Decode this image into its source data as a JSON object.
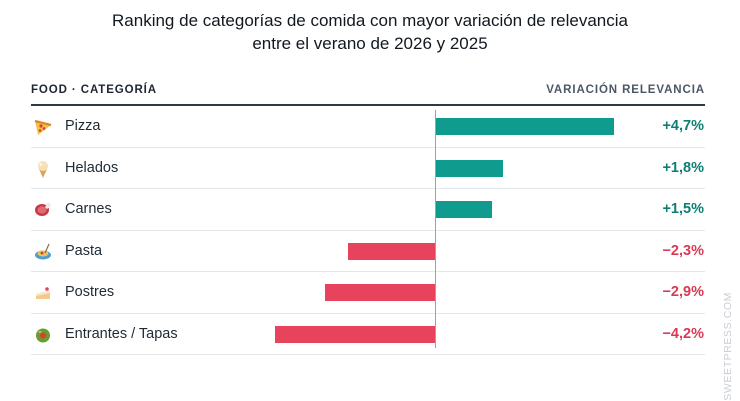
{
  "chart_data": {
    "type": "bar",
    "orientation": "horizontal",
    "title": "Ranking de categorías de comida con mayor variación de relevancia entre el verano de 2026 y 2025",
    "title_lines": [
      "Ranking de categorías de comida con mayor variación de relevancia",
      "entre el verano de 2026 y 2025"
    ],
    "column_left": "FOOD · CATEGORÍA",
    "column_right": "VARIACIÓN RELEVANCIA",
    "categories": [
      "Pizza",
      "Helados",
      "Carnes",
      "Pasta",
      "Postres",
      "Entrantes / Tapas"
    ],
    "values": [
      4.7,
      1.8,
      1.5,
      -2.3,
      -2.9,
      -4.2
    ],
    "value_labels": [
      "+4,7%",
      "+1,8%",
      "+1,5%",
      "−2,3%",
      "−2,9%",
      "−4,2%"
    ],
    "icons": [
      "pizza-icon",
      "ice-cream-icon",
      "meat-icon",
      "pasta-icon",
      "cake-icon",
      "olive-icon"
    ],
    "colors": {
      "positive": "#0f9b8e",
      "negative": "#e8435d",
      "positive_text": "#0d7f72",
      "negative_text": "#d63a55"
    },
    "xlim": [
      -4.7,
      4.7
    ],
    "grid": false,
    "legend": "none"
  },
  "watermark": "SWEETPRESS.COM"
}
